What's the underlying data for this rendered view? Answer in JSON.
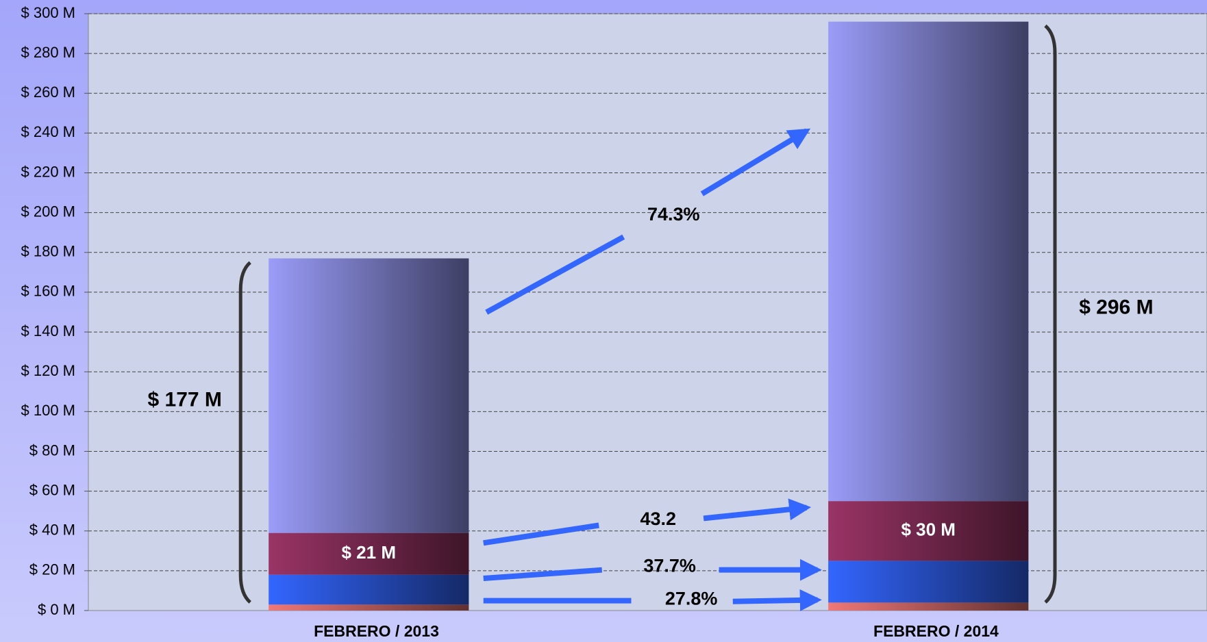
{
  "chart_data": {
    "type": "stacked_bar",
    "categories": [
      "FEBRERO / 2013",
      "FEBRERO / 2014"
    ],
    "series": [
      {
        "color": "#f07878",
        "values": [
          3,
          4
        ]
      },
      {
        "color": "#3366ff",
        "values": [
          15,
          21
        ]
      },
      {
        "color": "#9a3466",
        "values": [
          21,
          30
        ],
        "value_labels": [
          "$ 21 M",
          "$ 30 M"
        ]
      },
      {
        "color": "#9a9cf8",
        "values": [
          138,
          241
        ]
      }
    ],
    "totals": {
      "values": [
        177,
        296
      ],
      "labels": [
        "$ 177 M",
        "$ 296 M"
      ]
    },
    "annotations": [
      "74.3%",
      "43.2",
      "37.7%",
      "27.8%"
    ],
    "ylim": [
      0,
      300
    ],
    "yticks": [
      {
        "value": 0,
        "label": "$ 0 M"
      },
      {
        "value": 20,
        "label": "$ 20 M"
      },
      {
        "value": 40,
        "label": "$ 40 M"
      },
      {
        "value": 60,
        "label": "$ 60 M"
      },
      {
        "value": 80,
        "label": "$ 80 M"
      },
      {
        "value": 100,
        "label": "$ 100 M"
      },
      {
        "value": 120,
        "label": "$ 120 M"
      },
      {
        "value": 140,
        "label": "$ 140 M"
      },
      {
        "value": 160,
        "label": "$ 160 M"
      },
      {
        "value": 180,
        "label": "$ 180 M"
      },
      {
        "value": 200,
        "label": "$ 200 M"
      },
      {
        "value": 220,
        "label": "$ 220 M"
      },
      {
        "value": 240,
        "label": "$ 240 M"
      },
      {
        "value": 260,
        "label": "$ 260 M"
      },
      {
        "value": 280,
        "label": "$ 280 M"
      },
      {
        "value": 300,
        "label": "$ 300 M"
      }
    ],
    "grid": true
  }
}
